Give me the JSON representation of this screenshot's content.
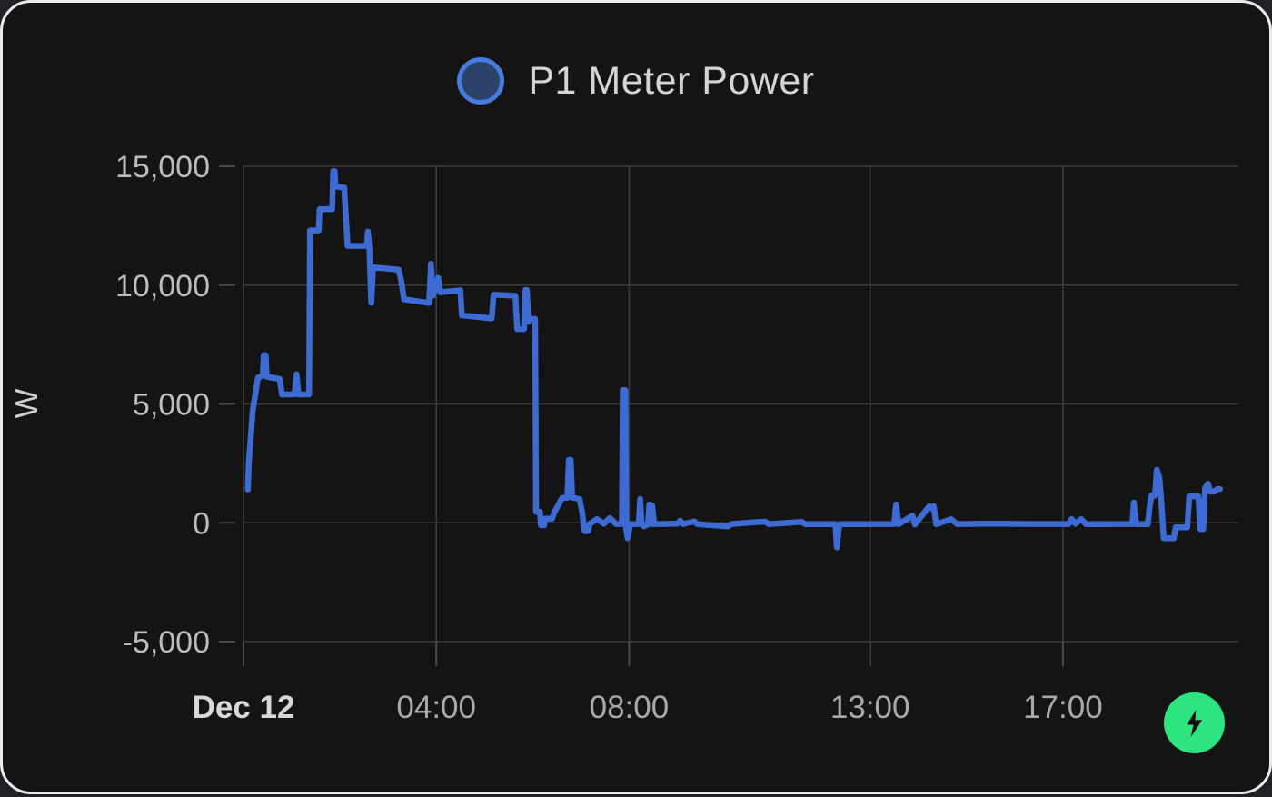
{
  "card": {
    "title": "P1 Meter Power",
    "axis_unit": "W"
  },
  "colors": {
    "page_bg": "#202027",
    "card_bg": "#141414",
    "card_border": "#ecebec",
    "grid": "#3d3d3d",
    "tick": "#4a4a4a",
    "line": "#3E6BD3",
    "legend_fill": "#2B4269",
    "legend_ring": "#477BE0",
    "title_text": "#d4d4d4",
    "y_label": "#bdbdbd",
    "x_label": "#a9a9a9",
    "x_label_bold": "#d8d8d8",
    "axis_name": "#cfcfcf",
    "button_bg": "#2CE57F",
    "button_icon": "#0d0d0d"
  },
  "icons": {
    "energy_button": "lightning-bolt"
  },
  "chart_data": {
    "type": "line",
    "title": "P1 Meter Power",
    "xlabel": "",
    "ylabel": "W",
    "x_unit": "hours since Dec 12 00:00",
    "xlim": [
      0,
      20.64
    ],
    "ylim": [
      -5000,
      15000
    ],
    "grid": true,
    "legend_position": "top-center",
    "y_ticks": [
      {
        "value": 15000,
        "label": "15,000"
      },
      {
        "value": 10000,
        "label": "10,000"
      },
      {
        "value": 5000,
        "label": "5,000"
      },
      {
        "value": 0,
        "label": "0"
      },
      {
        "value": -5000,
        "label": "-5,000"
      }
    ],
    "x_ticks": [
      {
        "value": 0,
        "label": "Dec 12",
        "bold": true
      },
      {
        "value": 4,
        "label": "04:00",
        "bold": false
      },
      {
        "value": 8,
        "label": "08:00",
        "bold": false
      },
      {
        "value": 13,
        "label": "13:00",
        "bold": false
      },
      {
        "value": 17,
        "label": "17:00",
        "bold": false
      }
    ],
    "series": [
      {
        "name": "P1 Meter Power",
        "color": "#3E6BD3",
        "points": [
          [
            0.09,
            1400
          ],
          [
            0.11,
            2500
          ],
          [
            0.14,
            3300
          ],
          [
            0.19,
            4700
          ],
          [
            0.26,
            5600
          ],
          [
            0.3,
            6100
          ],
          [
            0.4,
            6200
          ],
          [
            0.42,
            7050
          ],
          [
            0.46,
            7050
          ],
          [
            0.48,
            6150
          ],
          [
            0.75,
            6050
          ],
          [
            0.8,
            5400
          ],
          [
            1.06,
            5400
          ],
          [
            1.1,
            6250
          ],
          [
            1.14,
            5400
          ],
          [
            1.36,
            5400
          ],
          [
            1.38,
            12300
          ],
          [
            1.56,
            12300
          ],
          [
            1.58,
            13200
          ],
          [
            1.84,
            13200
          ],
          [
            1.86,
            14800
          ],
          [
            1.89,
            14800
          ],
          [
            1.91,
            14150
          ],
          [
            2.09,
            14100
          ],
          [
            2.12,
            13000
          ],
          [
            2.16,
            11650
          ],
          [
            2.56,
            11650
          ],
          [
            2.58,
            12250
          ],
          [
            2.61,
            11600
          ],
          [
            2.65,
            9250
          ],
          [
            2.69,
            10750
          ],
          [
            3.22,
            10650
          ],
          [
            3.27,
            10200
          ],
          [
            3.33,
            9400
          ],
          [
            3.85,
            9250
          ],
          [
            3.89,
            10900
          ],
          [
            3.93,
            9550
          ],
          [
            4.04,
            10300
          ],
          [
            4.08,
            9700
          ],
          [
            4.5,
            9780
          ],
          [
            4.53,
            8730
          ],
          [
            5.15,
            8600
          ],
          [
            5.19,
            9600
          ],
          [
            5.64,
            9550
          ],
          [
            5.68,
            8150
          ],
          [
            5.82,
            8150
          ],
          [
            5.85,
            9800
          ],
          [
            5.88,
            9800
          ],
          [
            5.91,
            8460
          ],
          [
            5.94,
            8580
          ],
          [
            6.05,
            8580
          ],
          [
            6.07,
            460
          ],
          [
            6.15,
            460
          ],
          [
            6.17,
            -100
          ],
          [
            6.24,
            -100
          ],
          [
            6.26,
            170
          ],
          [
            6.4,
            170
          ],
          [
            6.45,
            450
          ],
          [
            6.52,
            700
          ],
          [
            6.57,
            900
          ],
          [
            6.62,
            1050
          ],
          [
            6.72,
            1050
          ],
          [
            6.75,
            2650
          ],
          [
            6.79,
            2650
          ],
          [
            6.82,
            1060
          ],
          [
            6.97,
            1000
          ],
          [
            7.02,
            520
          ],
          [
            7.05,
            60
          ],
          [
            7.08,
            -350
          ],
          [
            7.15,
            -350
          ],
          [
            7.18,
            -50
          ],
          [
            7.33,
            150
          ],
          [
            7.48,
            -40
          ],
          [
            7.6,
            200
          ],
          [
            7.73,
            -50
          ],
          [
            7.85,
            -50
          ],
          [
            7.87,
            5580
          ],
          [
            7.92,
            5580
          ],
          [
            7.94,
            -250
          ],
          [
            7.97,
            -650
          ],
          [
            8.02,
            -60
          ],
          [
            8.2,
            -50
          ],
          [
            8.23,
            1000
          ],
          [
            8.26,
            -60
          ],
          [
            8.31,
            -150
          ],
          [
            8.39,
            -60
          ],
          [
            8.42,
            770
          ],
          [
            8.45,
            -50
          ],
          [
            8.48,
            720
          ],
          [
            8.52,
            -60
          ],
          [
            9.0,
            -40
          ],
          [
            9.06,
            90
          ],
          [
            9.12,
            -50
          ],
          [
            9.35,
            60
          ],
          [
            9.42,
            -60
          ],
          [
            10.05,
            -150
          ],
          [
            10.12,
            -50
          ],
          [
            10.82,
            50
          ],
          [
            10.9,
            -60
          ],
          [
            11.58,
            40
          ],
          [
            11.66,
            -60
          ],
          [
            12.28,
            -60
          ],
          [
            12.31,
            -1040
          ],
          [
            12.36,
            -60
          ],
          [
            13.5,
            -50
          ],
          [
            13.54,
            770
          ],
          [
            13.59,
            -60
          ],
          [
            13.88,
            300
          ],
          [
            13.93,
            -70
          ],
          [
            14.23,
            700
          ],
          [
            14.28,
            600
          ],
          [
            14.32,
            700
          ],
          [
            14.37,
            -60
          ],
          [
            14.68,
            150
          ],
          [
            14.8,
            -50
          ],
          [
            15.5,
            -40
          ],
          [
            16.5,
            -50
          ],
          [
            17.12,
            -50
          ],
          [
            17.18,
            160
          ],
          [
            17.26,
            -40
          ],
          [
            17.38,
            150
          ],
          [
            17.48,
            -60
          ],
          [
            18.44,
            -50
          ],
          [
            18.47,
            850
          ],
          [
            18.52,
            -60
          ],
          [
            18.76,
            -60
          ],
          [
            18.8,
            700
          ],
          [
            18.84,
            1150
          ],
          [
            18.91,
            1150
          ],
          [
            18.95,
            2230
          ],
          [
            19.0,
            1900
          ],
          [
            19.04,
            960
          ],
          [
            19.09,
            -650
          ],
          [
            19.3,
            -650
          ],
          [
            19.34,
            -190
          ],
          [
            19.58,
            -190
          ],
          [
            19.62,
            1115
          ],
          [
            19.81,
            1115
          ],
          [
            19.85,
            -270
          ],
          [
            19.91,
            -270
          ],
          [
            19.95,
            1460
          ],
          [
            20.01,
            1650
          ],
          [
            20.06,
            1310
          ],
          [
            20.14,
            1310
          ],
          [
            20.2,
            1420
          ],
          [
            20.26,
            1420
          ]
        ]
      }
    ]
  }
}
